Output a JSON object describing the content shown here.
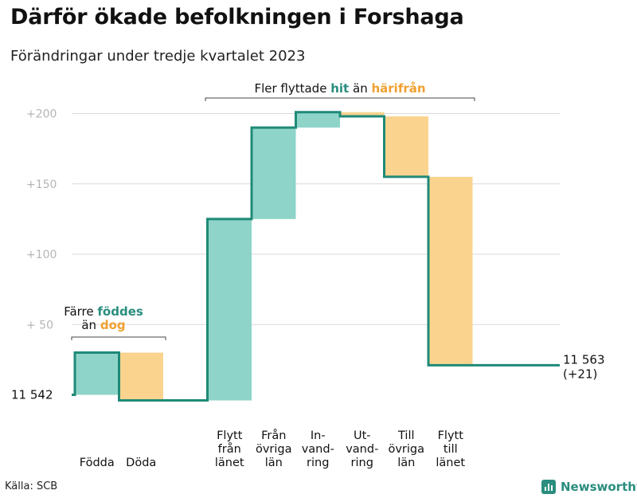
{
  "title": "Därför ökade befolkningen i Forshaga",
  "subtitle": "Förändringar under tredje kvartalet 2023",
  "source": "Källa: SCB",
  "brand": "Newsworthy",
  "annotations": {
    "bracket_left": {
      "line1": "Färre",
      "hl1": "föddes",
      "line2": "än",
      "hl2": "dog"
    },
    "bracket_right": {
      "pre": "Fler flyttade",
      "hl1": "hit",
      "mid": "än",
      "hl2": "härifrån"
    }
  },
  "colors": {
    "in": "#8fd4c9",
    "out": "#fad48f",
    "line": "#1f8a78",
    "accent_in": "#2a8d7e",
    "accent_out": "#f0a030",
    "grid": "#d9d9d9",
    "tick": "#b5b5b5"
  },
  "chart_data": {
    "type": "waterfall",
    "title": "Därför ökade befolkningen i Forshaga",
    "subtitle": "Förändringar under tredje kvartalet 2023",
    "start": {
      "label": "11  542",
      "value": 0
    },
    "end": {
      "label": "11 563",
      "change_label": "(+21)",
      "value": 21
    },
    "ylim": [
      -5,
      205
    ],
    "yticks": [
      {
        "value": 50,
        "label": "+  50"
      },
      {
        "value": 100,
        "label": "+100"
      },
      {
        "value": 150,
        "label": "+150"
      },
      {
        "value": 200,
        "label": "+200"
      }
    ],
    "grid": true,
    "steps": [
      {
        "label": [
          "Födda"
        ],
        "change": 30,
        "kind": "in"
      },
      {
        "label": [
          "Döda"
        ],
        "change": -34,
        "kind": "out"
      },
      {
        "label": [],
        "change": 0,
        "kind": "gap"
      },
      {
        "label": [
          "Flytt",
          "från",
          "länet"
        ],
        "change": 129,
        "kind": "in"
      },
      {
        "label": [
          "Från",
          "övriga",
          "län"
        ],
        "change": 65,
        "kind": "in"
      },
      {
        "label": [
          "In-",
          "vand-",
          "ring"
        ],
        "change": 11,
        "kind": "in"
      },
      {
        "label": [
          "Ut-",
          "vand-",
          "ring"
        ],
        "change": -3,
        "kind": "out"
      },
      {
        "label": [
          "Till",
          "övriga",
          "län"
        ],
        "change": -43,
        "kind": "out"
      },
      {
        "label": [
          "Flytt",
          "till",
          "länet"
        ],
        "change": -134,
        "kind": "out"
      }
    ]
  }
}
